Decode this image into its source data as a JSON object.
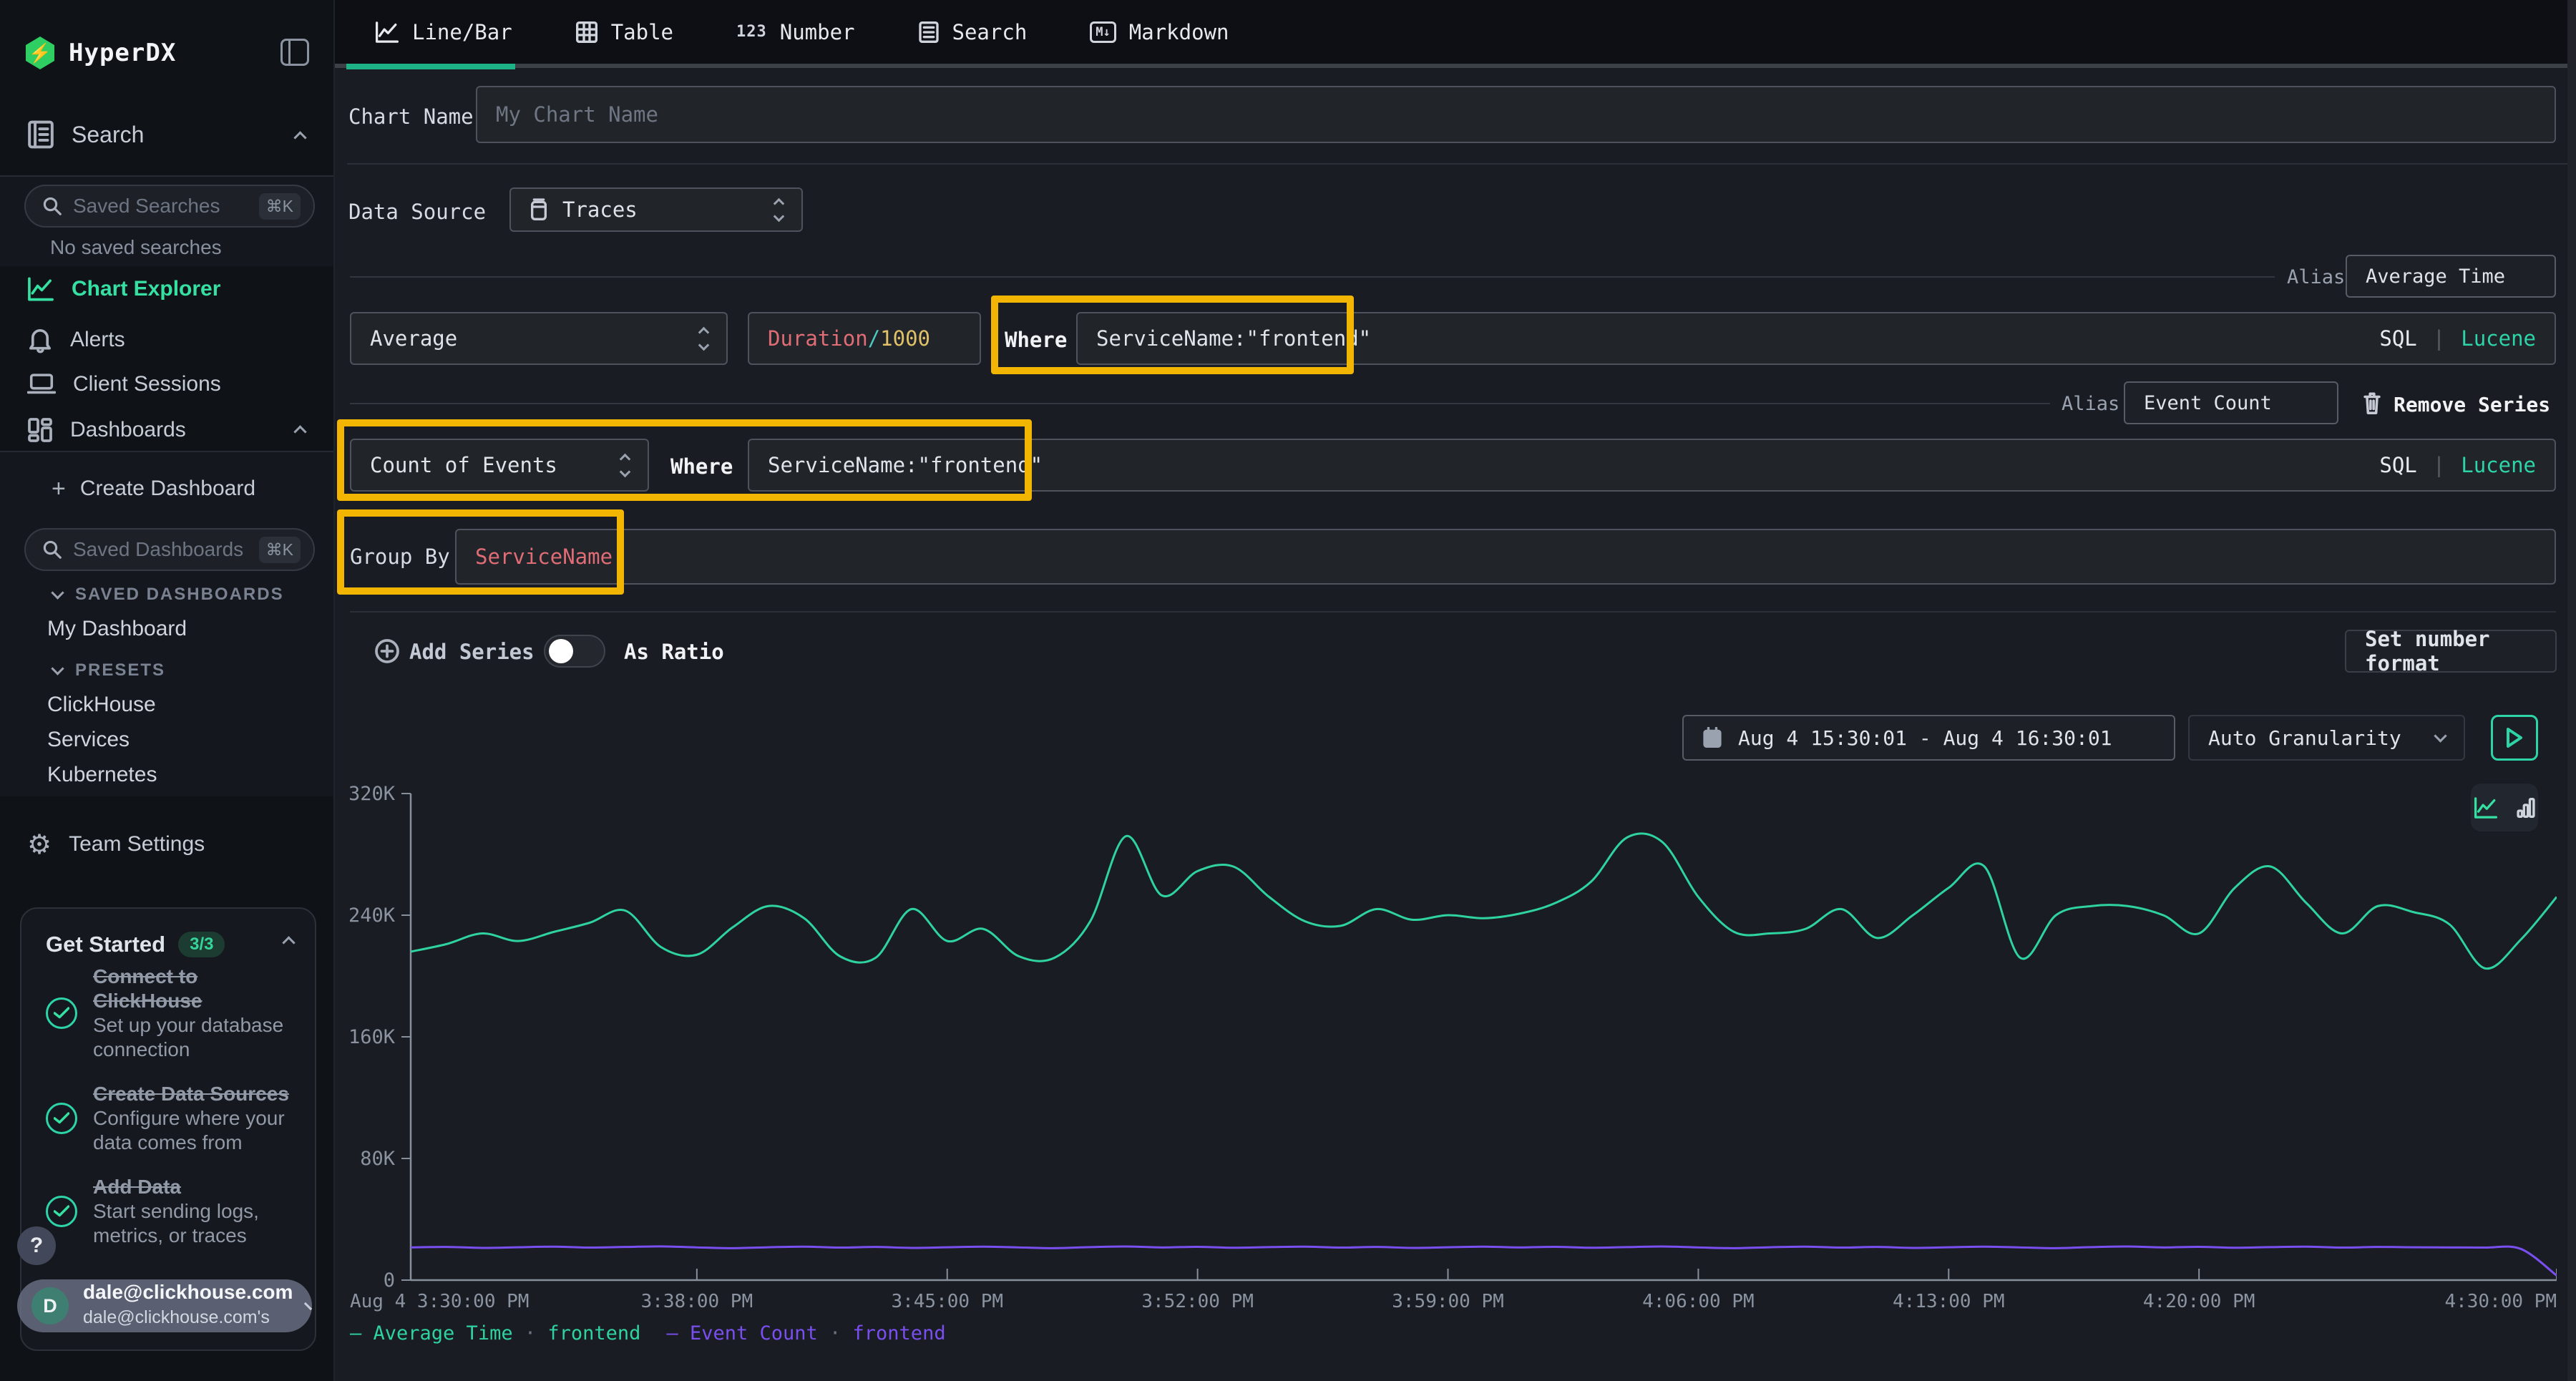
{
  "app": {
    "name": "HyperDX"
  },
  "sidebar": {
    "search_section": {
      "label": "Search",
      "placeholder": "Saved Searches",
      "shortcut": "⌘K",
      "empty": "No saved searches"
    },
    "nav": [
      {
        "label": "Chart Explorer"
      },
      {
        "label": "Alerts"
      },
      {
        "label": "Client Sessions"
      },
      {
        "label": "Dashboards"
      }
    ],
    "dashboards": {
      "create": "Create Dashboard",
      "placeholder": "Saved Dashboards",
      "shortcut": "⌘K",
      "saved_header": "SAVED DASHBOARDS",
      "saved_item": "My Dashboard",
      "presets_header": "PRESETS",
      "presets": [
        {
          "label": "ClickHouse"
        },
        {
          "label": "Services"
        },
        {
          "label": "Kubernetes"
        }
      ]
    },
    "team_settings": "Team Settings",
    "get_started": {
      "title": "Get Started",
      "badge": "3/3",
      "steps": [
        {
          "title": "Connect to\nClickHouse",
          "desc": "Set up your database\nconnection"
        },
        {
          "title": "Create Data Sources",
          "desc": "Configure where your\ndata comes from"
        },
        {
          "title": "Add Data",
          "desc": "Start sending logs,\nmetrics, or traces"
        }
      ]
    },
    "help": "?",
    "user": {
      "initial": "D",
      "email": "dale@clickhouse.com",
      "subtext": "dale@clickhouse.com's"
    }
  },
  "tabs": [
    {
      "label": "Line/Bar"
    },
    {
      "label": "Table"
    },
    {
      "label": "Number"
    },
    {
      "label": "Search"
    },
    {
      "label": "Markdown"
    }
  ],
  "form": {
    "chart_name_label": "Chart Name",
    "chart_name_placeholder": "My Chart Name",
    "data_source_label": "Data Source",
    "data_source_value": "Traces",
    "series1": {
      "aggregation": "Average",
      "field_a": "Duration",
      "field_op": "/",
      "field_b": "1000",
      "where_label": "Where",
      "where_value": "ServiceName:\"frontend\"",
      "alias_label": "Alias",
      "alias_value": "Average Time",
      "sql": "SQL",
      "bar": "|",
      "lucene": "Lucene"
    },
    "series2": {
      "aggregation": "Count of Events",
      "where_label": "Where",
      "where_value": "ServiceName:\"frontend\"",
      "alias_label": "Alias",
      "alias_value": "Event Count",
      "remove": "Remove Series",
      "sql": "SQL",
      "bar": "|",
      "lucene": "Lucene"
    },
    "group_by_label": "Group By",
    "group_by_value": "ServiceName",
    "add_series": "Add Series",
    "as_ratio": "As Ratio",
    "set_number_format": "Set number format",
    "date_range": "Aug 4 15:30:01 - Aug 4 16:30:01",
    "granularity": "Auto Granularity"
  },
  "chart_data": {
    "type": "line",
    "x_tick_minutes": [
      0,
      8,
      15,
      22,
      29,
      36,
      43,
      50,
      60
    ],
    "x_tick_labels": [
      "Aug 4 3:30:00 PM",
      "3:38:00 PM",
      "3:45:00 PM",
      "3:52:00 PM",
      "3:59:00 PM",
      "4:06:00 PM",
      "4:13:00 PM",
      "4:20:00 PM",
      "4:30:00 PM"
    ],
    "x_range_minutes": [
      0,
      60
    ],
    "ylim": [
      0,
      320000
    ],
    "y_ticks": [
      {
        "v": 0,
        "label": "0"
      },
      {
        "v": 80,
        "label": "80K"
      },
      {
        "v": 160,
        "label": "160K"
      },
      {
        "v": 240,
        "label": "240K"
      },
      {
        "v": 320,
        "label": "320K"
      }
    ],
    "grid": false,
    "legend_position": "bottom",
    "series": [
      {
        "name": "Average Time",
        "group": "frontend",
        "color": "#2ed3a0",
        "values_k": [
          216,
          221,
          228,
          223,
          229,
          235,
          243,
          219,
          214,
          232,
          246,
          238,
          213,
          212,
          244,
          223,
          231,
          213,
          212,
          236,
          292,
          253,
          269,
          272,
          252,
          236,
          233,
          244,
          237,
          240,
          238,
          241,
          248,
          262,
          291,
          288,
          252,
          229,
          228,
          231,
          244,
          225,
          240,
          258,
          272,
          212,
          240,
          246,
          246,
          240,
          228,
          258,
          272,
          248,
          228,
          246,
          242,
          234,
          205,
          224,
          252
        ]
      },
      {
        "name": "Event Count",
        "group": "frontend",
        "color": "#7a4ff0",
        "values_k": [
          21.5,
          21.8,
          21.2,
          21.6,
          22,
          21.4,
          21.8,
          22.2,
          21.5,
          21,
          21.6,
          22,
          21.4,
          21.8,
          21.2,
          21.6,
          22,
          21.5,
          21,
          21.7,
          22.1,
          21.5,
          21.9,
          21.3,
          21.7,
          22,
          21.4,
          21.8,
          21.2,
          21.6,
          22,
          21.5,
          21.9,
          21.3,
          21.7,
          22.1,
          21.5,
          21,
          21.6,
          22,
          21.4,
          21.8,
          21.2,
          21.6,
          22,
          21.5,
          21,
          21.7,
          22.1,
          21.5,
          21.9,
          21.3,
          21.7,
          22,
          21.4,
          21.8,
          21.6,
          21.5,
          21.4,
          20.5,
          3
        ]
      }
    ],
    "legend_separator": "·"
  }
}
